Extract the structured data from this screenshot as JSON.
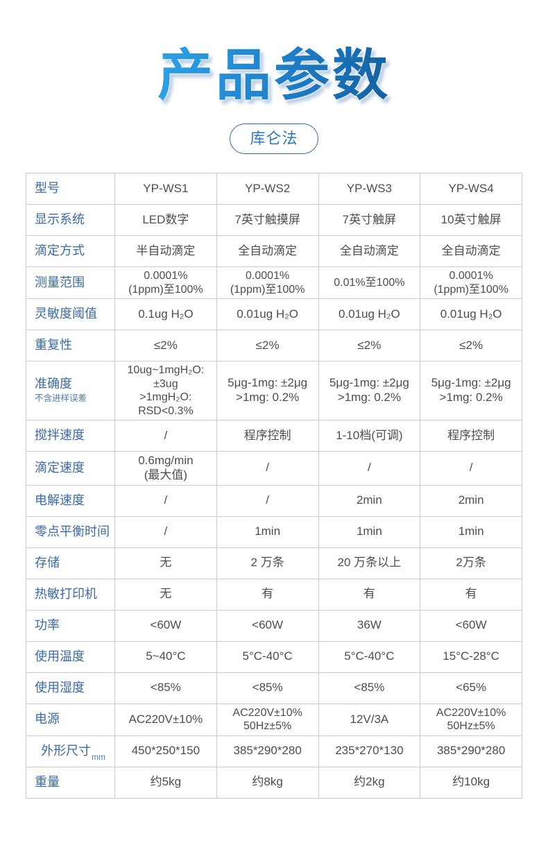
{
  "page": {
    "title": "产品参数",
    "badge": "库仑法"
  },
  "theme": {
    "title_gradient_start": "#2da2e8",
    "title_gradient_end": "#135f9e",
    "badge_border": "#2e6da4",
    "badge_text": "#2878b8",
    "row_label_blue": "#3a6ba8",
    "cell_text_gray": "#4d4d4d",
    "table_border": "#c9cdd2"
  },
  "table": {
    "rows": [
      {
        "label": "型号",
        "values": [
          "YP-WS1",
          "YP-WS2",
          "YP-WS3",
          "YP-WS4"
        ]
      },
      {
        "label": "显示系统",
        "values": [
          "LED数字",
          "7英寸触摸屏",
          "7英寸触屏",
          "10英寸触屏"
        ]
      },
      {
        "label": "滴定方式",
        "values": [
          "半自动滴定",
          "全自动滴定",
          "全自动滴定",
          "全自动滴定"
        ]
      },
      {
        "label": "测量范围",
        "values": [
          "0.0001%\n(1ppm)至100%",
          "0.0001%\n(1ppm)至100%",
          "0.01%至100%",
          "0.0001%\n(1ppm)至100%"
        ]
      },
      {
        "label": "灵敏度阈值",
        "values": [
          "0.1ug H₂O",
          "0.01ug H₂O",
          "0.01ug H₂O",
          "0.01ug H₂O"
        ]
      },
      {
        "label": "重复性",
        "values": [
          "≤2%",
          "≤2%",
          "≤2%",
          "≤2%"
        ]
      },
      {
        "label": "准确度",
        "sublabel": "不含进样误差",
        "values": [
          "10ug~1mgH₂O:\n±3ug\n>1mgH₂O:\nRSD<0.3%",
          "5μg-1mg: ±2μg\n>1mg: 0.2%",
          "5μg-1mg: ±2μg\n>1mg: 0.2%",
          "5μg-1mg: ±2μg\n>1mg: 0.2%"
        ]
      },
      {
        "label": "搅拌速度",
        "values": [
          "/",
          "程序控制",
          "1-10档(可调)",
          "程序控制"
        ]
      },
      {
        "label": "滴定速度",
        "values": [
          "0.6mg/min\n(最大值)",
          "/",
          "/",
          "/"
        ]
      },
      {
        "label": "电解速度",
        "values": [
          "/",
          "/",
          "2min",
          "2min"
        ]
      },
      {
        "label": "零点平衡时间",
        "values": [
          "/",
          "1min",
          "1min",
          "1min"
        ]
      },
      {
        "label": "存储",
        "values": [
          "无",
          "2 万条",
          "20 万条以上",
          "2万条"
        ]
      },
      {
        "label": "热敏打印机",
        "values": [
          "无",
          "有",
          "有",
          "有"
        ]
      },
      {
        "label": "功率",
        "values": [
          "<60W",
          "<60W",
          "36W",
          "<60W"
        ]
      },
      {
        "label": "使用温度",
        "values": [
          "5~40°C",
          "5°C-40°C",
          "5°C-40°C",
          "15°C-28°C"
        ]
      },
      {
        "label": "使用湿度",
        "values": [
          "<85%",
          "<85%",
          "<85%",
          "<65%"
        ]
      },
      {
        "label": "电源",
        "values": [
          "AC220V±10%",
          "AC220V±10%\n50Hz±5%",
          "12V/3A",
          "AC220V±10%\n50Hz±5%"
        ]
      },
      {
        "label": "外形尺寸",
        "sublabel": "mm",
        "values": [
          "450*250*150",
          "385*290*280",
          "235*270*130",
          "385*290*280"
        ]
      },
      {
        "label": "重量",
        "values": [
          "约5kg",
          "约8kg",
          "约2kg",
          "约10kg"
        ]
      }
    ]
  }
}
